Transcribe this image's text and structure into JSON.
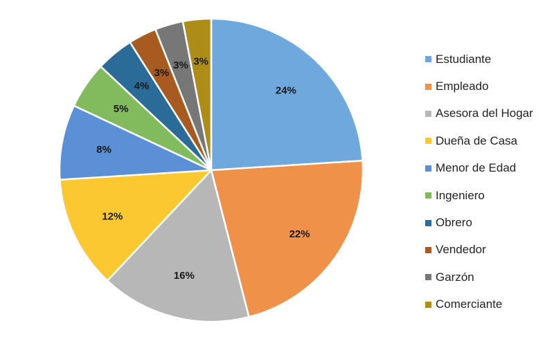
{
  "chart_data": {
    "type": "pie",
    "title": "",
    "categories": [
      "Estudiante",
      "Empleado",
      "Asesora del Hogar",
      "Dueña de Casa",
      "Menor de Edad",
      "Ingeniero",
      "Obrero",
      "Vendedor",
      "Garzón",
      "Comerciante"
    ],
    "values": [
      24,
      22,
      16,
      12,
      8,
      5,
      4,
      3,
      3,
      3
    ],
    "labels": [
      "24%",
      "22%",
      "16%",
      "12%",
      "8%",
      "5%",
      "4%",
      "3%",
      "3%",
      "3%"
    ],
    "colors": [
      "#6fa8dc",
      "#f0914a",
      "#b7b7b7",
      "#fcc831",
      "#5b8fd6",
      "#82bb5e",
      "#2a6b98",
      "#a85b20",
      "#777777",
      "#ae8c18"
    ],
    "start_angle_deg": 90,
    "direction": "clockwise",
    "legend_position": "right"
  }
}
